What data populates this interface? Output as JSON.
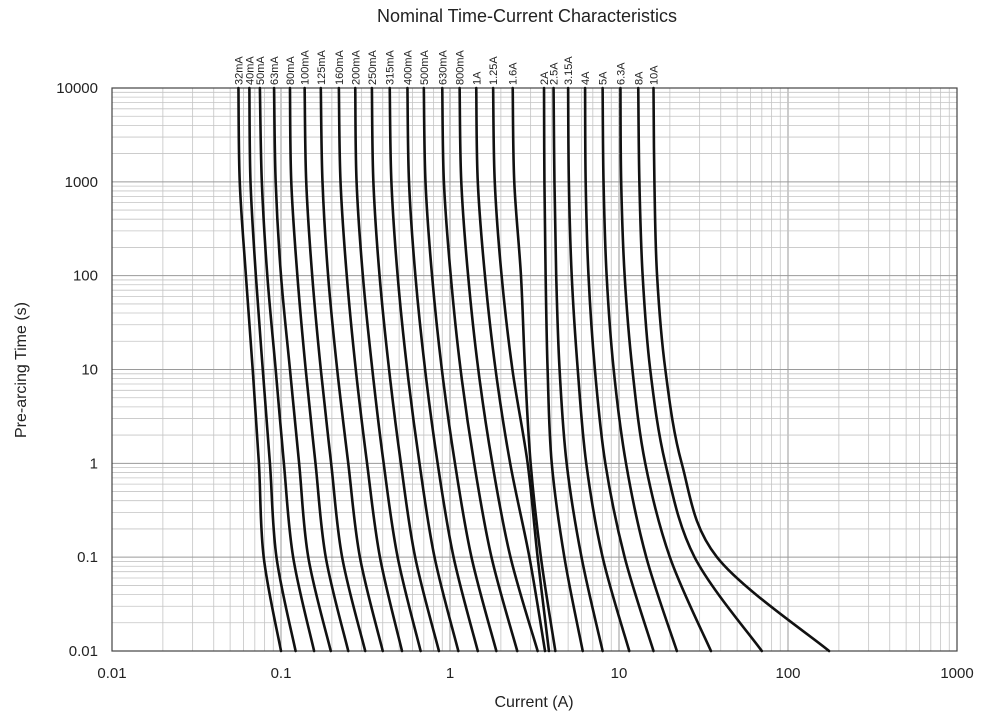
{
  "chart_data": {
    "type": "line",
    "title": "Nominal Time-Current Characteristics",
    "xlabel": "Current (A)",
    "ylabel": "Pre-arcing Time (s)",
    "x_scale": "log",
    "y_scale": "log",
    "xlim": [
      0.01,
      1000
    ],
    "ylim": [
      0.01,
      10000
    ],
    "x_ticks": [
      "0.01",
      "0.1",
      "1",
      "10",
      "100",
      "1000"
    ],
    "y_ticks": [
      "0.01",
      "0.1",
      "1",
      "10",
      "100",
      "1000",
      "10000"
    ],
    "grid": true,
    "series": [
      {
        "name": "32mA",
        "points": [
          [
            0.056,
            10000
          ],
          [
            0.057,
            1000
          ],
          [
            0.062,
            100
          ],
          [
            0.068,
            10
          ],
          [
            0.074,
            1
          ],
          [
            0.079,
            0.1
          ],
          [
            0.1,
            0.01
          ]
        ]
      },
      {
        "name": "40mA",
        "points": [
          [
            0.065,
            10000
          ],
          [
            0.066,
            1000
          ],
          [
            0.071,
            100
          ],
          [
            0.078,
            10
          ],
          [
            0.086,
            1
          ],
          [
            0.094,
            0.1
          ],
          [
            0.122,
            0.01
          ]
        ]
      },
      {
        "name": "50mA",
        "points": [
          [
            0.075,
            10000
          ],
          [
            0.077,
            1000
          ],
          [
            0.083,
            100
          ],
          [
            0.093,
            10
          ],
          [
            0.104,
            1
          ],
          [
            0.118,
            0.1
          ],
          [
            0.157,
            0.01
          ]
        ]
      },
      {
        "name": "63mA",
        "points": [
          [
            0.091,
            10000
          ],
          [
            0.093,
            1000
          ],
          [
            0.1,
            100
          ],
          [
            0.113,
            10
          ],
          [
            0.128,
            1
          ],
          [
            0.145,
            0.1
          ],
          [
            0.197,
            0.01
          ]
        ]
      },
      {
        "name": "80mA",
        "points": [
          [
            0.113,
            10000
          ],
          [
            0.115,
            1000
          ],
          [
            0.125,
            100
          ],
          [
            0.14,
            10
          ],
          [
            0.16,
            1
          ],
          [
            0.184,
            0.1
          ],
          [
            0.25,
            0.01
          ]
        ]
      },
      {
        "name": "100mA",
        "points": [
          [
            0.138,
            10000
          ],
          [
            0.141,
            1000
          ],
          [
            0.153,
            100
          ],
          [
            0.172,
            10
          ],
          [
            0.198,
            1
          ],
          [
            0.23,
            0.1
          ],
          [
            0.315,
            0.01
          ]
        ]
      },
      {
        "name": "125mA",
        "points": [
          [
            0.172,
            10000
          ],
          [
            0.176,
            1000
          ],
          [
            0.19,
            100
          ],
          [
            0.215,
            10
          ],
          [
            0.25,
            1
          ],
          [
            0.293,
            0.1
          ],
          [
            0.4,
            0.01
          ]
        ]
      },
      {
        "name": "160mA",
        "points": [
          [
            0.22,
            10000
          ],
          [
            0.225,
            1000
          ],
          [
            0.245,
            100
          ],
          [
            0.277,
            10
          ],
          [
            0.323,
            1
          ],
          [
            0.385,
            0.1
          ],
          [
            0.52,
            0.01
          ]
        ]
      },
      {
        "name": "200mA",
        "points": [
          [
            0.275,
            10000
          ],
          [
            0.28,
            1000
          ],
          [
            0.305,
            100
          ],
          [
            0.347,
            10
          ],
          [
            0.405,
            1
          ],
          [
            0.49,
            0.1
          ],
          [
            0.67,
            0.01
          ]
        ]
      },
      {
        "name": "250mA",
        "points": [
          [
            0.345,
            10000
          ],
          [
            0.352,
            1000
          ],
          [
            0.383,
            100
          ],
          [
            0.436,
            10
          ],
          [
            0.512,
            1
          ],
          [
            0.622,
            0.1
          ],
          [
            0.86,
            0.01
          ]
        ]
      },
      {
        "name": "315mA",
        "points": [
          [
            0.44,
            10000
          ],
          [
            0.45,
            1000
          ],
          [
            0.49,
            100
          ],
          [
            0.558,
            10
          ],
          [
            0.66,
            1
          ],
          [
            0.81,
            0.1
          ],
          [
            1.12,
            0.01
          ]
        ]
      },
      {
        "name": "400mA",
        "points": [
          [
            0.56,
            10000
          ],
          [
            0.572,
            1000
          ],
          [
            0.624,
            100
          ],
          [
            0.712,
            10
          ],
          [
            0.845,
            1
          ],
          [
            1.05,
            0.1
          ],
          [
            1.46,
            0.01
          ]
        ]
      },
      {
        "name": "500mA",
        "points": [
          [
            0.7,
            10000
          ],
          [
            0.716,
            1000
          ],
          [
            0.783,
            100
          ],
          [
            0.895,
            10
          ],
          [
            1.07,
            1
          ],
          [
            1.34,
            0.1
          ],
          [
            1.88,
            0.01
          ]
        ]
      },
      {
        "name": "630mA",
        "points": [
          [
            0.9,
            10000
          ],
          [
            0.92,
            1000
          ],
          [
            1.01,
            100
          ],
          [
            1.155,
            10
          ],
          [
            1.39,
            1
          ],
          [
            1.76,
            0.1
          ],
          [
            2.5,
            0.01
          ]
        ]
      },
      {
        "name": "800mA",
        "points": [
          [
            1.14,
            10000
          ],
          [
            1.166,
            1000
          ],
          [
            1.28,
            100
          ],
          [
            1.47,
            10
          ],
          [
            1.78,
            1
          ],
          [
            2.28,
            0.1
          ],
          [
            3.3,
            0.01
          ]
        ]
      },
      {
        "name": "1A",
        "points": [
          [
            1.43,
            10000
          ],
          [
            1.46,
            1000
          ],
          [
            1.61,
            100
          ],
          [
            1.86,
            10
          ],
          [
            2.27,
            1
          ],
          [
            2.95,
            0.1
          ],
          [
            3.65,
            0.01
          ]
        ]
      },
      {
        "name": "1.25A",
        "points": [
          [
            1.8,
            10000
          ],
          [
            1.84,
            1000
          ],
          [
            2.02,
            100
          ],
          [
            2.34,
            10
          ],
          [
            2.88,
            1
          ],
          [
            3.3,
            0.1
          ],
          [
            3.85,
            0.01
          ]
        ]
      },
      {
        "name": "1.6A",
        "points": [
          [
            2.35,
            10000
          ],
          [
            2.4,
            1000
          ],
          [
            2.63,
            100
          ],
          [
            2.78,
            10
          ],
          [
            3.0,
            1
          ],
          [
            3.45,
            0.1
          ],
          [
            4.2,
            0.01
          ]
        ]
      },
      {
        "name": "2A",
        "points": [
          [
            3.6,
            10000
          ],
          [
            3.62,
            1000
          ],
          [
            3.68,
            100
          ],
          [
            3.78,
            10
          ],
          [
            4.0,
            1
          ],
          [
            4.75,
            0.1
          ],
          [
            6.1,
            0.01
          ]
        ]
      },
      {
        "name": "2.5A",
        "points": [
          [
            4.1,
            10000
          ],
          [
            4.15,
            1000
          ],
          [
            4.25,
            100
          ],
          [
            4.45,
            10
          ],
          [
            4.9,
            1
          ],
          [
            6.0,
            0.1
          ],
          [
            8.0,
            0.01
          ]
        ]
      },
      {
        "name": "3.15A",
        "points": [
          [
            5.0,
            10000
          ],
          [
            5.05,
            1000
          ],
          [
            5.25,
            100
          ],
          [
            5.7,
            10
          ],
          [
            6.4,
            1
          ],
          [
            8.0,
            0.1
          ],
          [
            11.5,
            0.01
          ]
        ]
      },
      {
        "name": "4A",
        "points": [
          [
            6.3,
            10000
          ],
          [
            6.35,
            1000
          ],
          [
            6.6,
            100
          ],
          [
            7.2,
            10
          ],
          [
            8.3,
            1
          ],
          [
            10.8,
            0.1
          ],
          [
            16.0,
            0.01
          ]
        ]
      },
      {
        "name": "5A",
        "points": [
          [
            8.0,
            10000
          ],
          [
            8.1,
            1000
          ],
          [
            8.45,
            100
          ],
          [
            9.3,
            10
          ],
          [
            11.0,
            1
          ],
          [
            14.5,
            0.1
          ],
          [
            22.0,
            0.01
          ]
        ]
      },
      {
        "name": "6.3A",
        "points": [
          [
            10.2,
            10000
          ],
          [
            10.3,
            1000
          ],
          [
            10.8,
            100
          ],
          [
            12.0,
            10
          ],
          [
            14.3,
            1
          ],
          [
            20.0,
            0.1
          ],
          [
            35.0,
            0.01
          ]
        ]
      },
      {
        "name": "8A",
        "points": [
          [
            13.0,
            10000
          ],
          [
            13.2,
            1000
          ],
          [
            13.8,
            100
          ],
          [
            15.3,
            10
          ],
          [
            18.8,
            1
          ],
          [
            28.0,
            0.1
          ],
          [
            70.0,
            0.01
          ]
        ]
      },
      {
        "name": "10A",
        "points": [
          [
            16.0,
            10000
          ],
          [
            16.2,
            1000
          ],
          [
            16.8,
            100
          ],
          [
            18.8,
            10
          ],
          [
            23.5,
            1
          ],
          [
            38.0,
            0.1
          ],
          [
            175.0,
            0.01
          ]
        ]
      }
    ]
  }
}
